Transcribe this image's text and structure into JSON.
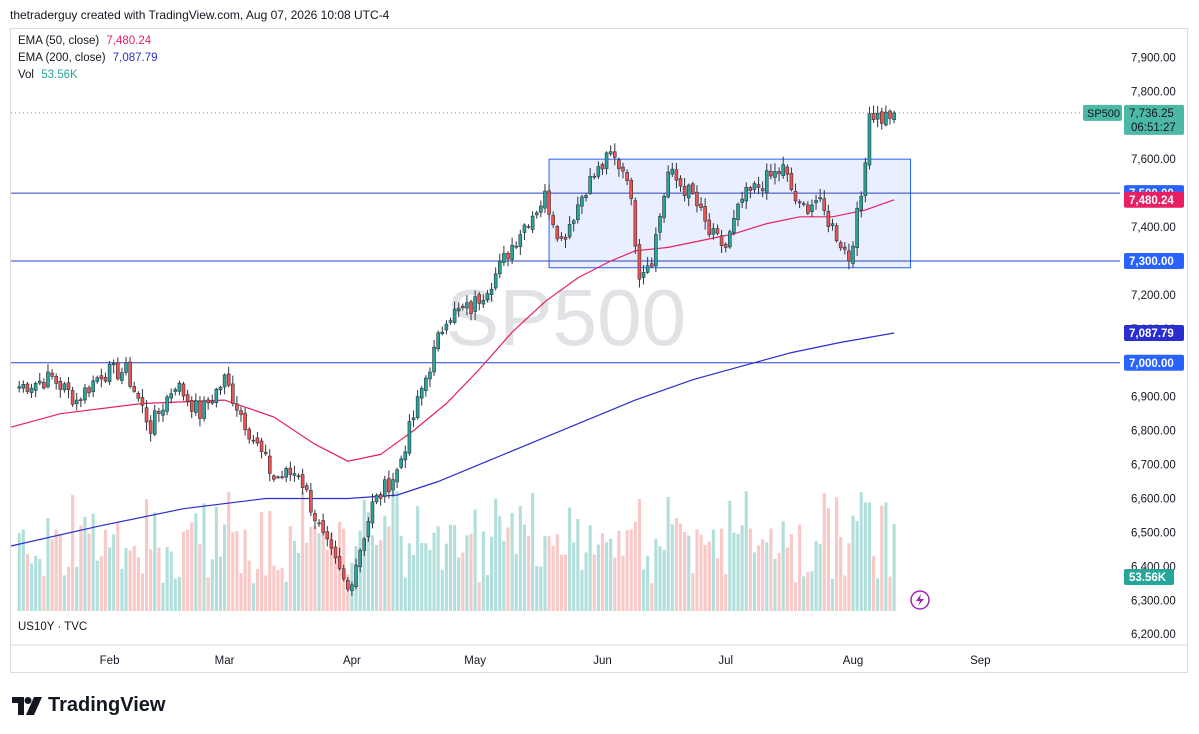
{
  "header": {
    "caption": "thetraderguy created with TradingView.com, Aug 07, 2026 10:08 UTC-4"
  },
  "legend": [
    {
      "label": "EMA (50, close)",
      "value": "7,480.24",
      "color": "#e91e63"
    },
    {
      "label": "EMA (200, close)",
      "value": "7,087.79",
      "color": "#2a2ed0"
    },
    {
      "label": "Vol",
      "value": "53.56K",
      "color": "#26a69a"
    }
  ],
  "watermark": "SP500",
  "ticker_label": "US10Y · TVC",
  "price_tag": {
    "symbol": "SP500",
    "price": "7,736.25",
    "countdown": "06:51:27",
    "color": "#4cb8a6"
  },
  "level_tags": [
    {
      "text": "7,500.00",
      "value": 7500,
      "color": "#2962ff"
    },
    {
      "text": "7,480.24",
      "value": 7480.24,
      "color": "#e91e63"
    },
    {
      "text": "7,300.00",
      "value": 7300,
      "color": "#2962ff"
    },
    {
      "text": "7,087.79",
      "value": 7087.79,
      "color": "#2a2ed0"
    },
    {
      "text": "7,000.00",
      "value": 7000,
      "color": "#2962ff"
    }
  ],
  "volume_tag": {
    "text": "53.56K",
    "color": "#26a69a"
  },
  "logo_text": "TradingView",
  "chart_data": {
    "type": "candlestick",
    "yaxis": {
      "ticks": [
        6200,
        6300,
        6400,
        6500,
        6600,
        6700,
        6800,
        6900,
        7000,
        7100,
        7200,
        7300,
        7400,
        7500,
        7600,
        7700,
        7800,
        7900
      ],
      "tick_labels": [
        "6,200.00",
        "6,300.00",
        "6,400.00",
        "6,500.00",
        "6,600.00",
        "6,700.00",
        "6,800.00",
        "6,900.00",
        "7,000.00",
        "7,100.00",
        "7,200.00",
        "7,300.00",
        "7,400.00",
        "7,500.00",
        "7,600.00",
        "7,700.00",
        "7,800.00",
        "7,900.00"
      ],
      "range": [
        6180,
        7960
      ]
    },
    "xaxis": {
      "months": [
        {
          "label": "Feb",
          "day": 22
        },
        {
          "label": "Mar",
          "day": 50
        },
        {
          "label": "Apr",
          "day": 81
        },
        {
          "label": "May",
          "day": 111
        },
        {
          "label": "Jun",
          "day": 142
        },
        {
          "label": "Jul",
          "day": 172
        },
        {
          "label": "Aug",
          "day": 203
        },
        {
          "label": "Sep",
          "day": 234
        }
      ],
      "range": [
        -2,
        268
      ]
    },
    "horizontal_levels": [
      7500,
      7300,
      7000
    ],
    "consolidation_box": {
      "from_day": 129,
      "to_day": 217,
      "low": 7280,
      "high": 7600
    },
    "anchors": [
      {
        "day": 0,
        "close": 6930
      },
      {
        "day": 8,
        "close": 6955
      },
      {
        "day": 14,
        "close": 6890
      },
      {
        "day": 20,
        "close": 6970
      },
      {
        "day": 26,
        "close": 6975
      },
      {
        "day": 32,
        "close": 6810
      },
      {
        "day": 38,
        "close": 6940
      },
      {
        "day": 44,
        "close": 6850
      },
      {
        "day": 50,
        "close": 6950
      },
      {
        "day": 56,
        "close": 6800
      },
      {
        "day": 62,
        "close": 6660
      },
      {
        "day": 68,
        "close": 6680
      },
      {
        "day": 74,
        "close": 6480
      },
      {
        "day": 80,
        "close": 6330
      },
      {
        "day": 86,
        "close": 6580
      },
      {
        "day": 92,
        "close": 6680
      },
      {
        "day": 98,
        "close": 6920
      },
      {
        "day": 104,
        "close": 7140
      },
      {
        "day": 110,
        "close": 7160
      },
      {
        "day": 116,
        "close": 7260
      },
      {
        "day": 122,
        "close": 7390
      },
      {
        "day": 128,
        "close": 7490
      },
      {
        "day": 132,
        "close": 7360
      },
      {
        "day": 138,
        "close": 7520
      },
      {
        "day": 144,
        "close": 7610
      },
      {
        "day": 148,
        "close": 7560
      },
      {
        "day": 151,
        "close": 7270
      },
      {
        "day": 154,
        "close": 7310
      },
      {
        "day": 158,
        "close": 7560
      },
      {
        "day": 164,
        "close": 7490
      },
      {
        "day": 168,
        "close": 7380
      },
      {
        "day": 172,
        "close": 7340
      },
      {
        "day": 176,
        "close": 7480
      },
      {
        "day": 182,
        "close": 7540
      },
      {
        "day": 186,
        "close": 7570
      },
      {
        "day": 190,
        "close": 7450
      },
      {
        "day": 194,
        "close": 7480
      },
      {
        "day": 198,
        "close": 7400
      },
      {
        "day": 202,
        "close": 7310
      },
      {
        "day": 205,
        "close": 7490
      },
      {
        "day": 207,
        "close": 7740
      },
      {
        "day": 210,
        "close": 7720
      },
      {
        "day": 213,
        "close": 7736.25
      }
    ],
    "ema50": [
      [
        -2,
        6810
      ],
      [
        10,
        6850
      ],
      [
        30,
        6880
      ],
      [
        50,
        6890
      ],
      [
        62,
        6840
      ],
      [
        72,
        6760
      ],
      [
        80,
        6710
      ],
      [
        88,
        6730
      ],
      [
        96,
        6800
      ],
      [
        104,
        6880
      ],
      [
        112,
        6980
      ],
      [
        120,
        7090
      ],
      [
        128,
        7180
      ],
      [
        136,
        7250
      ],
      [
        144,
        7300
      ],
      [
        150,
        7330
      ],
      [
        158,
        7340
      ],
      [
        166,
        7360
      ],
      [
        174,
        7380
      ],
      [
        182,
        7410
      ],
      [
        190,
        7430
      ],
      [
        198,
        7430
      ],
      [
        206,
        7450
      ],
      [
        213,
        7480.24
      ]
    ],
    "ema200": [
      [
        -2,
        6460
      ],
      [
        20,
        6520
      ],
      [
        40,
        6570
      ],
      [
        60,
        6600
      ],
      [
        80,
        6600
      ],
      [
        92,
        6610
      ],
      [
        102,
        6650
      ],
      [
        112,
        6700
      ],
      [
        124,
        6760
      ],
      [
        136,
        6820
      ],
      [
        150,
        6890
      ],
      [
        164,
        6950
      ],
      [
        176,
        6990
      ],
      [
        188,
        7030
      ],
      [
        200,
        7060
      ],
      [
        213,
        7087.79
      ]
    ]
  }
}
